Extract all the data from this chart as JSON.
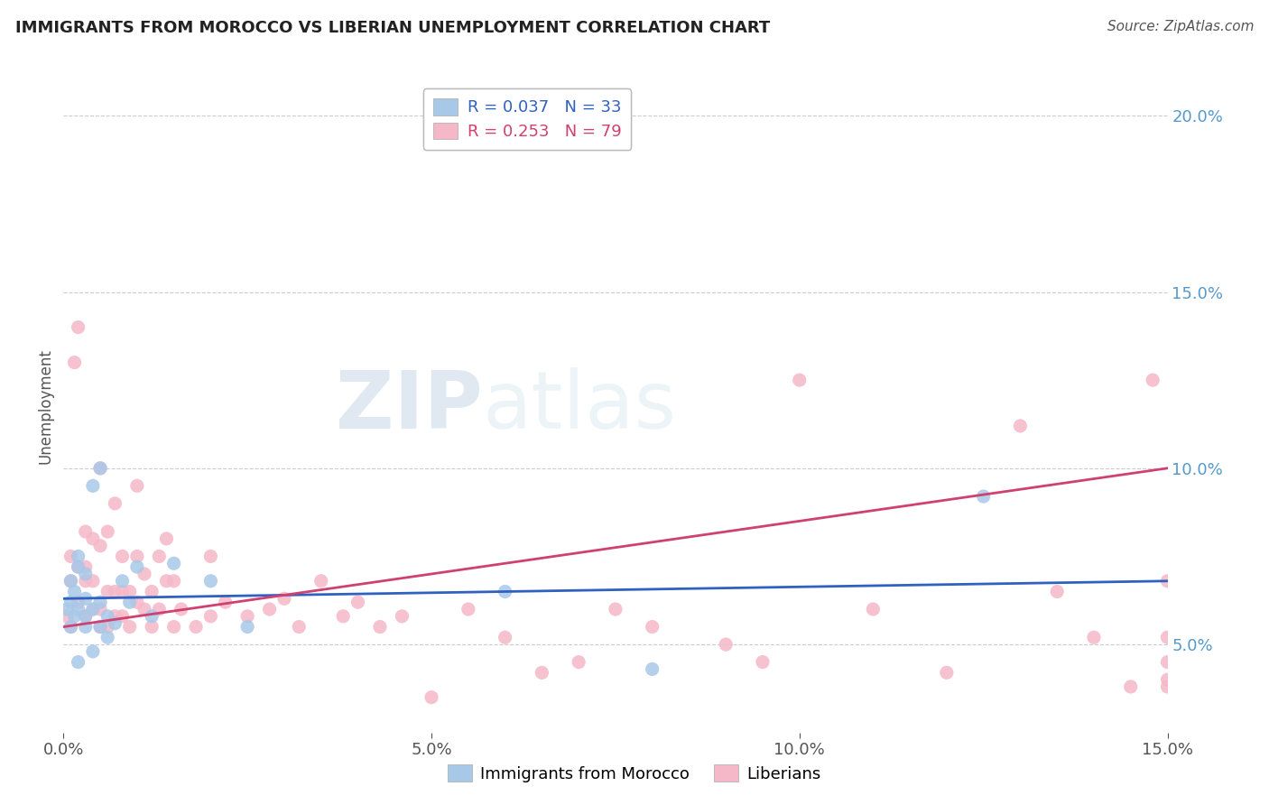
{
  "title": "IMMIGRANTS FROM MOROCCO VS LIBERIAN UNEMPLOYMENT CORRELATION CHART",
  "source_text": "Source: ZipAtlas.com",
  "ylabel": "Unemployment",
  "xmin": 0.0,
  "xmax": 0.15,
  "ymin": 0.025,
  "ymax": 0.21,
  "yticks": [
    0.05,
    0.1,
    0.15,
    0.2
  ],
  "ytick_labels": [
    "5.0%",
    "10.0%",
    "15.0%",
    "20.0%"
  ],
  "xticks": [
    0.0,
    0.05,
    0.1,
    0.15
  ],
  "xtick_labels": [
    "0.0%",
    "5.0%",
    "10.0%",
    "15.0%"
  ],
  "morocco_color": "#a8c8e8",
  "liberian_color": "#f5b8c8",
  "morocco_line_color": "#3060c0",
  "liberian_line_color": "#d04070",
  "watermark_zip": "ZIP",
  "watermark_atlas": "atlas",
  "background_color": "#ffffff",
  "morocco_x": [
    0.0005,
    0.001,
    0.001,
    0.001,
    0.0015,
    0.0015,
    0.002,
    0.002,
    0.002,
    0.002,
    0.003,
    0.003,
    0.003,
    0.003,
    0.004,
    0.004,
    0.004,
    0.005,
    0.005,
    0.005,
    0.006,
    0.006,
    0.007,
    0.008,
    0.009,
    0.01,
    0.012,
    0.015,
    0.02,
    0.025,
    0.06,
    0.08,
    0.125
  ],
  "morocco_y": [
    0.06,
    0.055,
    0.062,
    0.068,
    0.058,
    0.065,
    0.06,
    0.072,
    0.075,
    0.045,
    0.055,
    0.058,
    0.063,
    0.07,
    0.048,
    0.06,
    0.095,
    0.055,
    0.062,
    0.1,
    0.052,
    0.058,
    0.056,
    0.068,
    0.062,
    0.072,
    0.058,
    0.073,
    0.068,
    0.055,
    0.065,
    0.043,
    0.092
  ],
  "liberian_x": [
    0.0005,
    0.001,
    0.001,
    0.001,
    0.0015,
    0.002,
    0.002,
    0.002,
    0.003,
    0.003,
    0.003,
    0.003,
    0.004,
    0.004,
    0.004,
    0.005,
    0.005,
    0.005,
    0.005,
    0.006,
    0.006,
    0.006,
    0.007,
    0.007,
    0.007,
    0.008,
    0.008,
    0.008,
    0.009,
    0.009,
    0.01,
    0.01,
    0.01,
    0.011,
    0.011,
    0.012,
    0.012,
    0.013,
    0.013,
    0.014,
    0.014,
    0.015,
    0.015,
    0.016,
    0.018,
    0.02,
    0.02,
    0.022,
    0.025,
    0.028,
    0.03,
    0.032,
    0.035,
    0.038,
    0.04,
    0.043,
    0.046,
    0.05,
    0.055,
    0.06,
    0.065,
    0.07,
    0.075,
    0.08,
    0.09,
    0.095,
    0.1,
    0.11,
    0.12,
    0.13,
    0.135,
    0.14,
    0.145,
    0.148,
    0.15,
    0.15,
    0.15,
    0.15,
    0.15
  ],
  "liberian_y": [
    0.058,
    0.055,
    0.068,
    0.075,
    0.13,
    0.062,
    0.072,
    0.14,
    0.058,
    0.068,
    0.072,
    0.082,
    0.06,
    0.068,
    0.08,
    0.055,
    0.06,
    0.078,
    0.1,
    0.055,
    0.065,
    0.082,
    0.058,
    0.065,
    0.09,
    0.058,
    0.065,
    0.075,
    0.055,
    0.065,
    0.062,
    0.075,
    0.095,
    0.06,
    0.07,
    0.055,
    0.065,
    0.06,
    0.075,
    0.068,
    0.08,
    0.055,
    0.068,
    0.06,
    0.055,
    0.058,
    0.075,
    0.062,
    0.058,
    0.06,
    0.063,
    0.055,
    0.068,
    0.058,
    0.062,
    0.055,
    0.058,
    0.035,
    0.06,
    0.052,
    0.042,
    0.045,
    0.06,
    0.055,
    0.05,
    0.045,
    0.125,
    0.06,
    0.042,
    0.112,
    0.065,
    0.052,
    0.038,
    0.125,
    0.068,
    0.052,
    0.04,
    0.038,
    0.045
  ],
  "morocco_trend_x0": 0.0,
  "morocco_trend_x1": 0.15,
  "morocco_trend_y0": 0.063,
  "morocco_trend_y1": 0.068,
  "liberian_trend_x0": 0.0,
  "liberian_trend_x1": 0.15,
  "liberian_trend_y0": 0.055,
  "liberian_trend_y1": 0.1
}
